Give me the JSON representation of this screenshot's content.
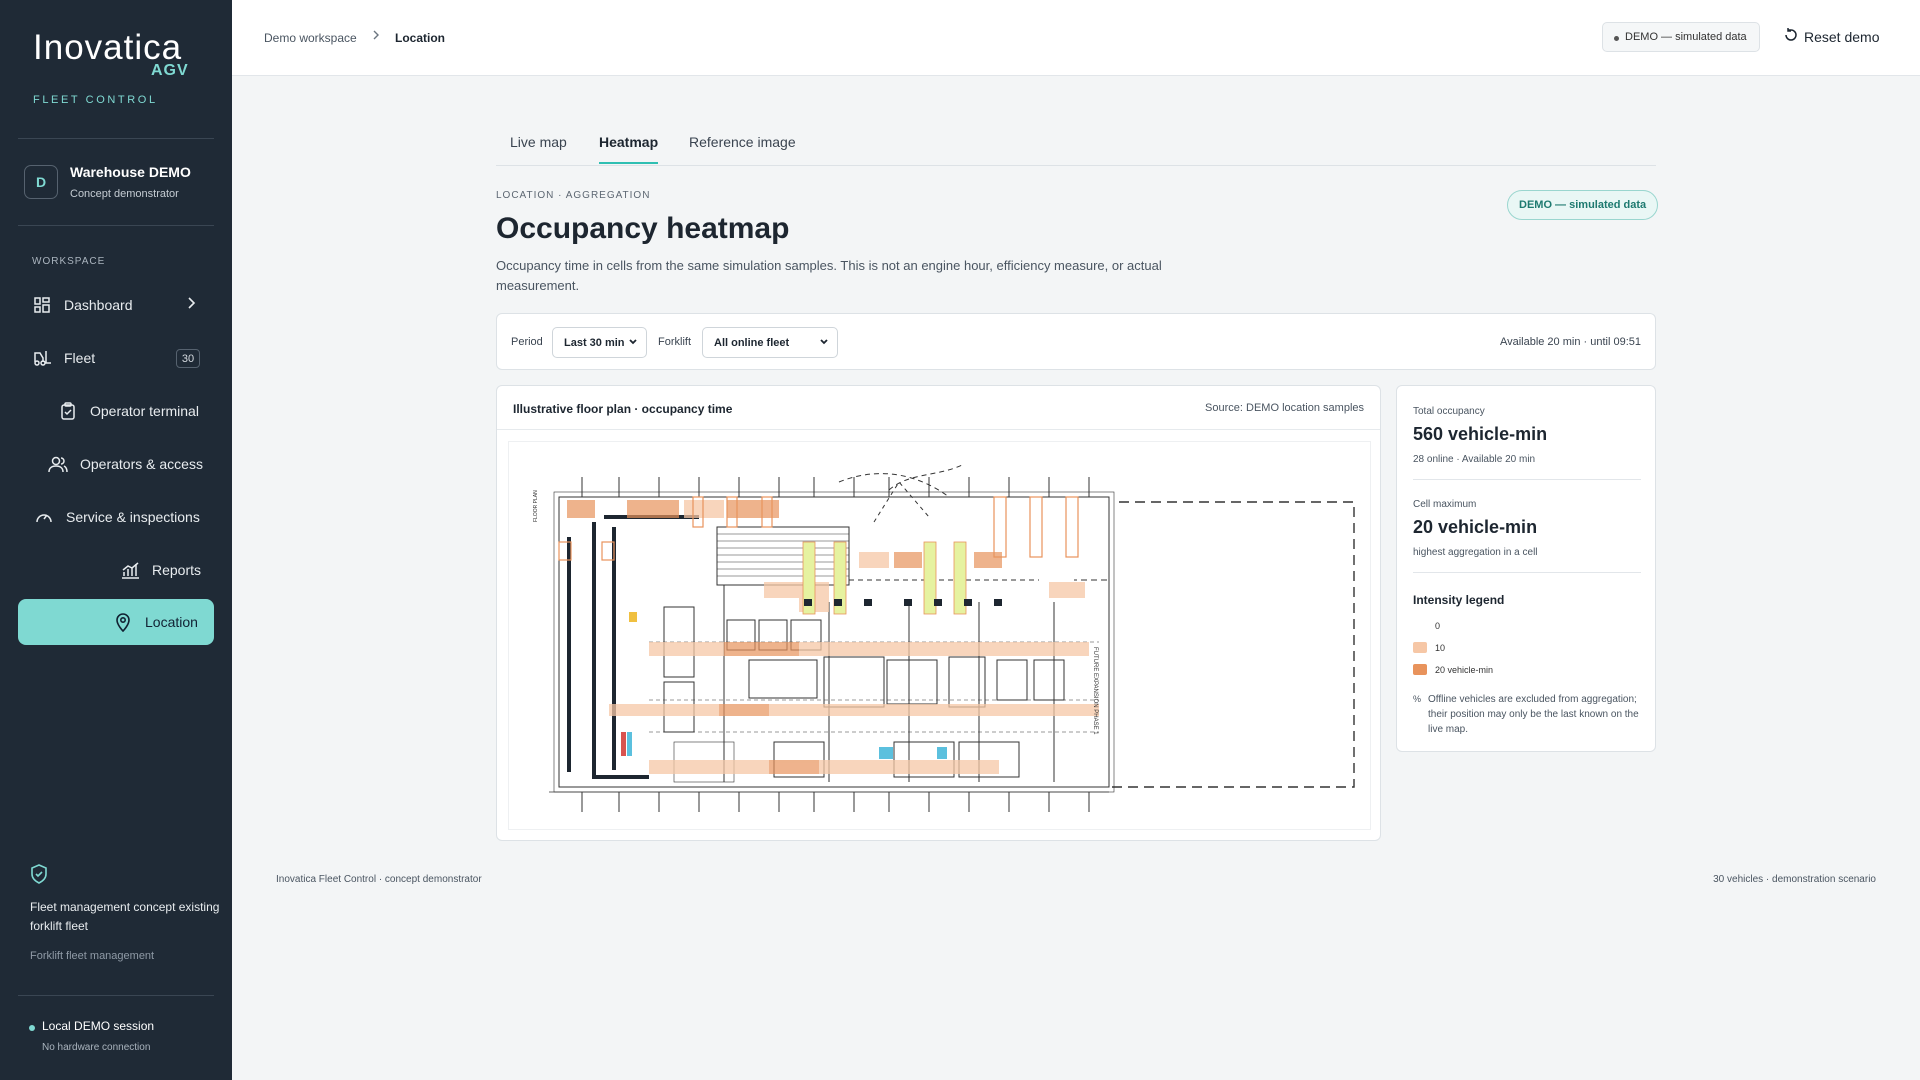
{
  "brand": {
    "name": "Inovatica",
    "suffix": "AGV",
    "tagline": "FLEET CONTROL"
  },
  "workspace": {
    "initial": "D",
    "name": "Warehouse DEMO",
    "subtitle": "Concept demonstrator"
  },
  "sidebar": {
    "section_title": "WORKSPACE",
    "items": [
      {
        "label": "Dashboard",
        "icon": "grid-icon",
        "has_chevron": true
      },
      {
        "label": "Fleet",
        "icon": "forklift-icon",
        "badge": "30"
      },
      {
        "label": "Operator terminal",
        "icon": "clipboard-check-icon"
      },
      {
        "label": "Operators & access",
        "icon": "users-icon"
      },
      {
        "label": "Service & inspections",
        "icon": "gauge-icon"
      },
      {
        "label": "Reports",
        "icon": "chart-icon"
      },
      {
        "label": "Location",
        "icon": "map-pin-icon",
        "active": true
      }
    ],
    "concept_title": "Fleet management concept existing forklift fleet",
    "concept_sub": "Forklift fleet management",
    "session_title": "Local DEMO session",
    "session_sub": "No hardware connection"
  },
  "topbar": {
    "breadcrumb": [
      "Demo workspace",
      "Location"
    ],
    "demo_pill": "DEMO — simulated data",
    "reset_label": "Reset demo"
  },
  "tabs": [
    "Live map",
    "Heatmap",
    "Reference image"
  ],
  "active_tab": "Heatmap",
  "page": {
    "eyebrow": "LOCATION · AGGREGATION",
    "title": "Occupancy heatmap",
    "description": "Occupancy time in cells from the same simulation samples. This is not an engine hour, efficiency measure, or actual measurement.",
    "demo_badge": "DEMO — simulated data"
  },
  "filters": {
    "period_label": "Period",
    "period_value": "Last 30 min",
    "forklift_label": "Forklift",
    "forklift_value": "All online fleet",
    "availability": "Available 20 min · until 09:51"
  },
  "map": {
    "title": "Illustrative floor plan · occupancy time",
    "source": "Source: DEMO location samples",
    "text_future": "FUTURE EXPANSION PHASE 1",
    "text_floorplan": "FLOOR PLAN"
  },
  "stats": {
    "total_label": "Total occupancy",
    "total_value": "560 vehicle-min",
    "total_sub": "28 online · Available 20 min",
    "max_label": "Cell maximum",
    "max_value": "20 vehicle-min",
    "max_sub": "highest aggregation in a cell",
    "legend_title": "Intensity legend",
    "legend": [
      {
        "label": "0",
        "color": "#ffffff"
      },
      {
        "label": "10",
        "color": "#f6c7a6"
      },
      {
        "label": "20 vehicle-min",
        "color": "#e8935c"
      }
    ],
    "note_marker": "%",
    "note": "Offline vehicles are excluded from aggregation; their position may only be the last known on the live map."
  },
  "footer": {
    "left": "Inovatica Fleet Control · concept demonstrator",
    "right": "30 vehicles · demonstration scenario"
  },
  "colors": {
    "sidebar": "#1f2a36",
    "accent": "#7fd9d2",
    "heat_low": "#f6c7a6",
    "heat_high": "#e8935c",
    "highlight": "#e6f2a0"
  }
}
